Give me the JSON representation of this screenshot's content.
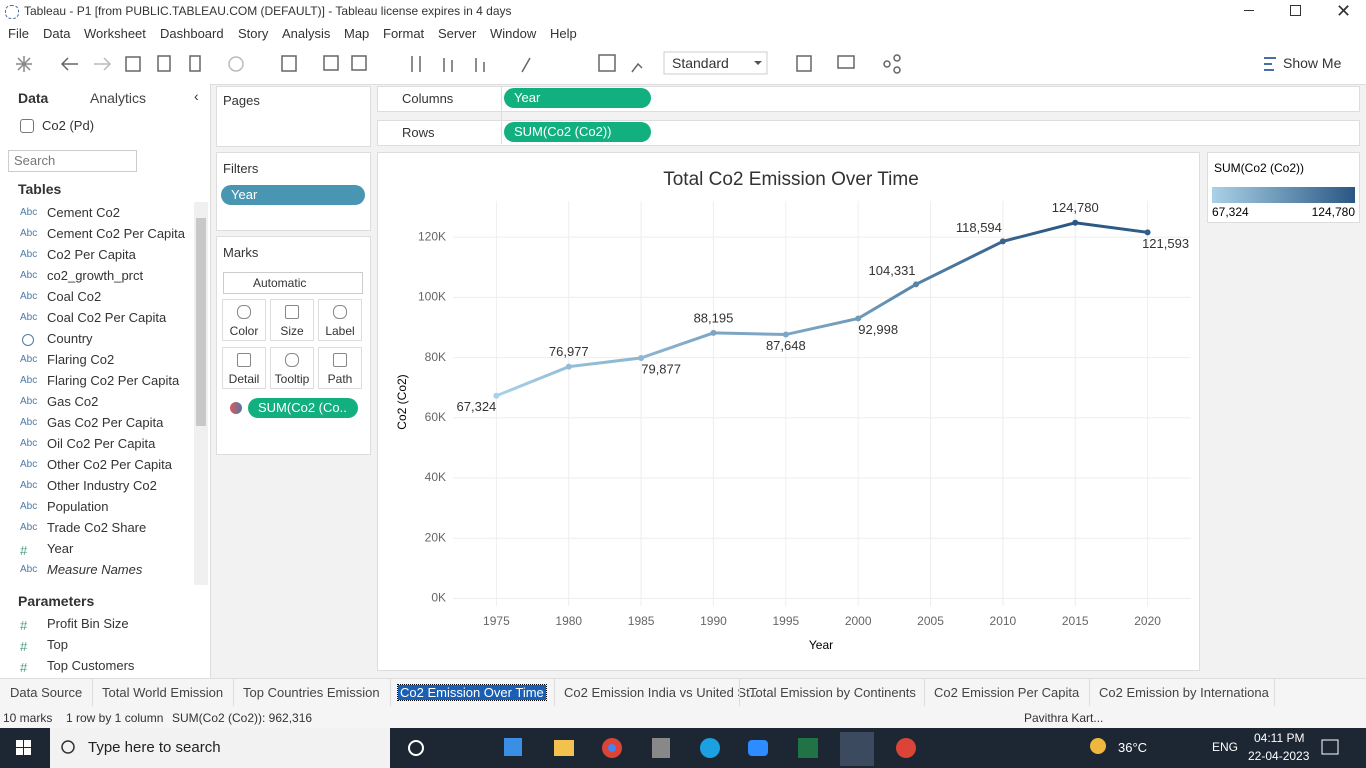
{
  "window": {
    "title": "Tableau - P1 [from PUBLIC.TABLEAU.COM (DEFAULT)] - Tableau license expires in 4 days"
  },
  "menu": [
    "File",
    "Data",
    "Worksheet",
    "Dashboard",
    "Story",
    "Analysis",
    "Map",
    "Format",
    "Server",
    "Window",
    "Help"
  ],
  "toolbar": {
    "fit": "Standard",
    "show_me": "Show Me"
  },
  "data_pane": {
    "tabs": [
      "Data",
      "Analytics"
    ],
    "source": "Co2 (Pd)",
    "search": "Search",
    "tables_title": "Tables",
    "fields": [
      {
        "type": "Abc",
        "name": "Cement Co2"
      },
      {
        "type": "Abc",
        "name": "Cement Co2 Per Capita"
      },
      {
        "type": "Abc",
        "name": "Co2 Per Capita"
      },
      {
        "type": "Abc",
        "name": "co2_growth_prct"
      },
      {
        "type": "Abc",
        "name": "Coal Co2"
      },
      {
        "type": "Abc",
        "name": "Coal Co2 Per Capita"
      },
      {
        "name": "Country"
      },
      {
        "type": "Abc",
        "name": "Flaring Co2"
      },
      {
        "type": "Abc",
        "name": "Flaring Co2 Per Capita"
      },
      {
        "type": "Abc",
        "name": "Gas Co2"
      },
      {
        "type": "Abc",
        "name": "Gas Co2 Per Capita"
      },
      {
        "type": "Abc",
        "name": "Oil Co2 Per Capita"
      },
      {
        "type": "Abc",
        "name": "Other Co2 Per Capita"
      },
      {
        "type": "Abc",
        "name": "Other Industry Co2"
      },
      {
        "type": "Abc",
        "name": "Population"
      },
      {
        "type": "Abc",
        "name": "Trade Co2 Share"
      },
      {
        "type": "#",
        "name": "Year"
      },
      {
        "type": "Abc",
        "name": "Measure Names"
      }
    ],
    "parameters_title": "Parameters",
    "parameters": [
      {
        "type": "#",
        "name": "Profit Bin Size"
      },
      {
        "type": "#",
        "name": "Top"
      },
      {
        "type": "#",
        "name": "Top Customers"
      }
    ]
  },
  "shelves": {
    "pages": "Pages",
    "filters": "Filters",
    "filter_pills": [
      "Year"
    ],
    "marks": "Marks",
    "mark_type": "Automatic",
    "mark_buttons": [
      "Color",
      "Size",
      "Label",
      "Detail",
      "Tooltip",
      "Path"
    ],
    "mark_pill": "SUM(Co2 (Co..",
    "columns": "Columns",
    "columns_pill": "Year",
    "rows": "Rows",
    "rows_pill": "SUM(Co2 (Co2))"
  },
  "chart_data": {
    "type": "line",
    "title": "Total Co2 Emission Over Time",
    "x_label": "Year",
    "y_label": "Co2 (Co2)",
    "x": [
      1975,
      1980,
      1985,
      1990,
      1995,
      2000,
      2004,
      2010,
      2015,
      2020
    ],
    "series": [
      {
        "name": "SUM(Co2 (Co2))",
        "values": [
          67324,
          76977,
          79877,
          88195,
          87648,
          92998,
          104331,
          118594,
          124780,
          121593
        ],
        "value_labels": [
          "67,324",
          "76,977",
          "79,877",
          "88,195",
          "87,648",
          "92,998",
          "104,331",
          "118,594",
          "124,780",
          "121,593"
        ]
      }
    ],
    "xlim": [
      1972,
      2023
    ],
    "xticks": [
      1975,
      1980,
      1985,
      1990,
      1995,
      2000,
      2005,
      2010,
      2015,
      2020
    ],
    "ylim": [
      -2500,
      132000
    ],
    "yticks": [
      {
        "value": 0,
        "label": "0K"
      },
      {
        "value": 20000,
        "label": "20K"
      },
      {
        "value": 40000,
        "label": "40K"
      },
      {
        "value": 60000,
        "label": "60K"
      },
      {
        "value": 80000,
        "label": "80K"
      },
      {
        "value": 100000,
        "label": "100K"
      },
      {
        "value": 120000,
        "label": "120K"
      }
    ],
    "grid": true,
    "color_range": [
      "#a9d2e8",
      "#2a5783"
    ],
    "color_legend": {
      "min": {
        "value": 67324,
        "label": "67,324"
      },
      "max": {
        "value": 124780,
        "label": "124,780"
      }
    }
  },
  "sheet_tabs": {
    "tabs": [
      "Data Source",
      "Total World Emission",
      "Top Countries Emission",
      "Co2 Emission Over Time",
      "Co2 Emission India vs United St...",
      "Total Emission by Continents",
      "Co2 Emission Per Capita",
      "Co2 Emission by Internationa"
    ],
    "selected": 3
  },
  "status": {
    "marks": "10 marks",
    "layout": "1 row by 1 column",
    "summary": "SUM(Co2 (Co2)): 962,316",
    "user": "Pavithra Kart..."
  },
  "taskbar": {
    "search": "Type here to search",
    "weather": "36°C",
    "language": "ENG",
    "time": "04:11 PM",
    "date": "22-04-2023"
  }
}
